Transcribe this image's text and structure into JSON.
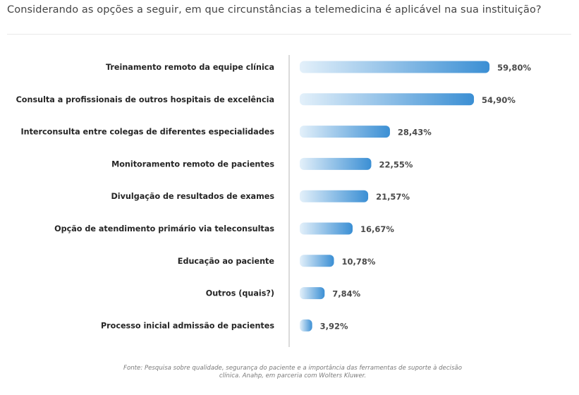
{
  "title": "Considerando as opções a seguir, em que circunstâncias a telemedicina é aplicável na sua instituição?",
  "source_note": "Fonte: Pesquisa sobre qualidade, segurança do paciente e a importância das ferramentas de suporte à decisão clínica. Anahp, em parceria com Wolters Kluwer.",
  "colors": {
    "bar_start": "#e3f0fa",
    "bar_end": "#3b8fd4",
    "axis": "#b5b5b5"
  },
  "chart_data": {
    "type": "bar",
    "orientation": "horizontal",
    "title": "Considerando as opções a seguir, em que circunstâncias a telemedicina é aplicável na sua instituição?",
    "xlabel": "",
    "ylabel": "",
    "xlim": [
      0,
      70
    ],
    "grid": false,
    "categories": [
      "Treinamento remoto da equipe clínica",
      "Consulta a profissionais de outros hospitais de excelência",
      "Interconsulta entre colegas de diferentes especialidades",
      "Monitoramento remoto de pacientes",
      "Divulgação de resultados de exames",
      "Opção de atendimento primário via teleconsultas",
      "Educação ao paciente",
      "Outros (quais?)",
      "Processo inicial admissão de pacientes"
    ],
    "values": [
      59.8,
      54.9,
      28.43,
      22.55,
      21.57,
      16.67,
      10.78,
      7.84,
      3.92
    ],
    "value_labels": [
      "59,80%",
      "54,90%",
      "28,43%",
      "22,55%",
      "21,57%",
      "16,67%",
      "10,78%",
      "7,84%",
      "3,92%"
    ]
  }
}
